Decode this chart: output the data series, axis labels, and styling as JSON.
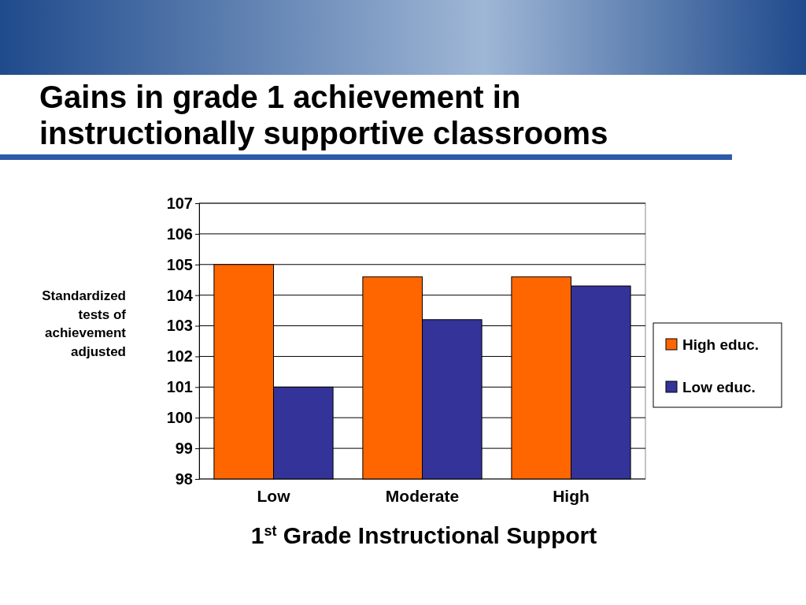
{
  "chart_data": {
    "type": "bar",
    "title": "Gains in grade 1 achievement in instructionally supportive classrooms",
    "xlabel": "1$^{st}$ Grade Instructional Support",
    "ylabel": "Standardized tests of achievement adjusted",
    "categories": [
      "Low",
      "Moderate",
      "High"
    ],
    "series": [
      {
        "name": "High educ.",
        "color": "#ff6600",
        "values": [
          105.0,
          104.6,
          104.6
        ]
      },
      {
        "name": "Low educ.",
        "color": "#333399",
        "values": [
          101.0,
          103.2,
          104.3
        ]
      }
    ],
    "ylim": [
      98,
      107
    ],
    "yticks": [
      98,
      99,
      100,
      101,
      102,
      103,
      104,
      105,
      106,
      107
    ],
    "grid": "y",
    "legend": "right"
  }
}
